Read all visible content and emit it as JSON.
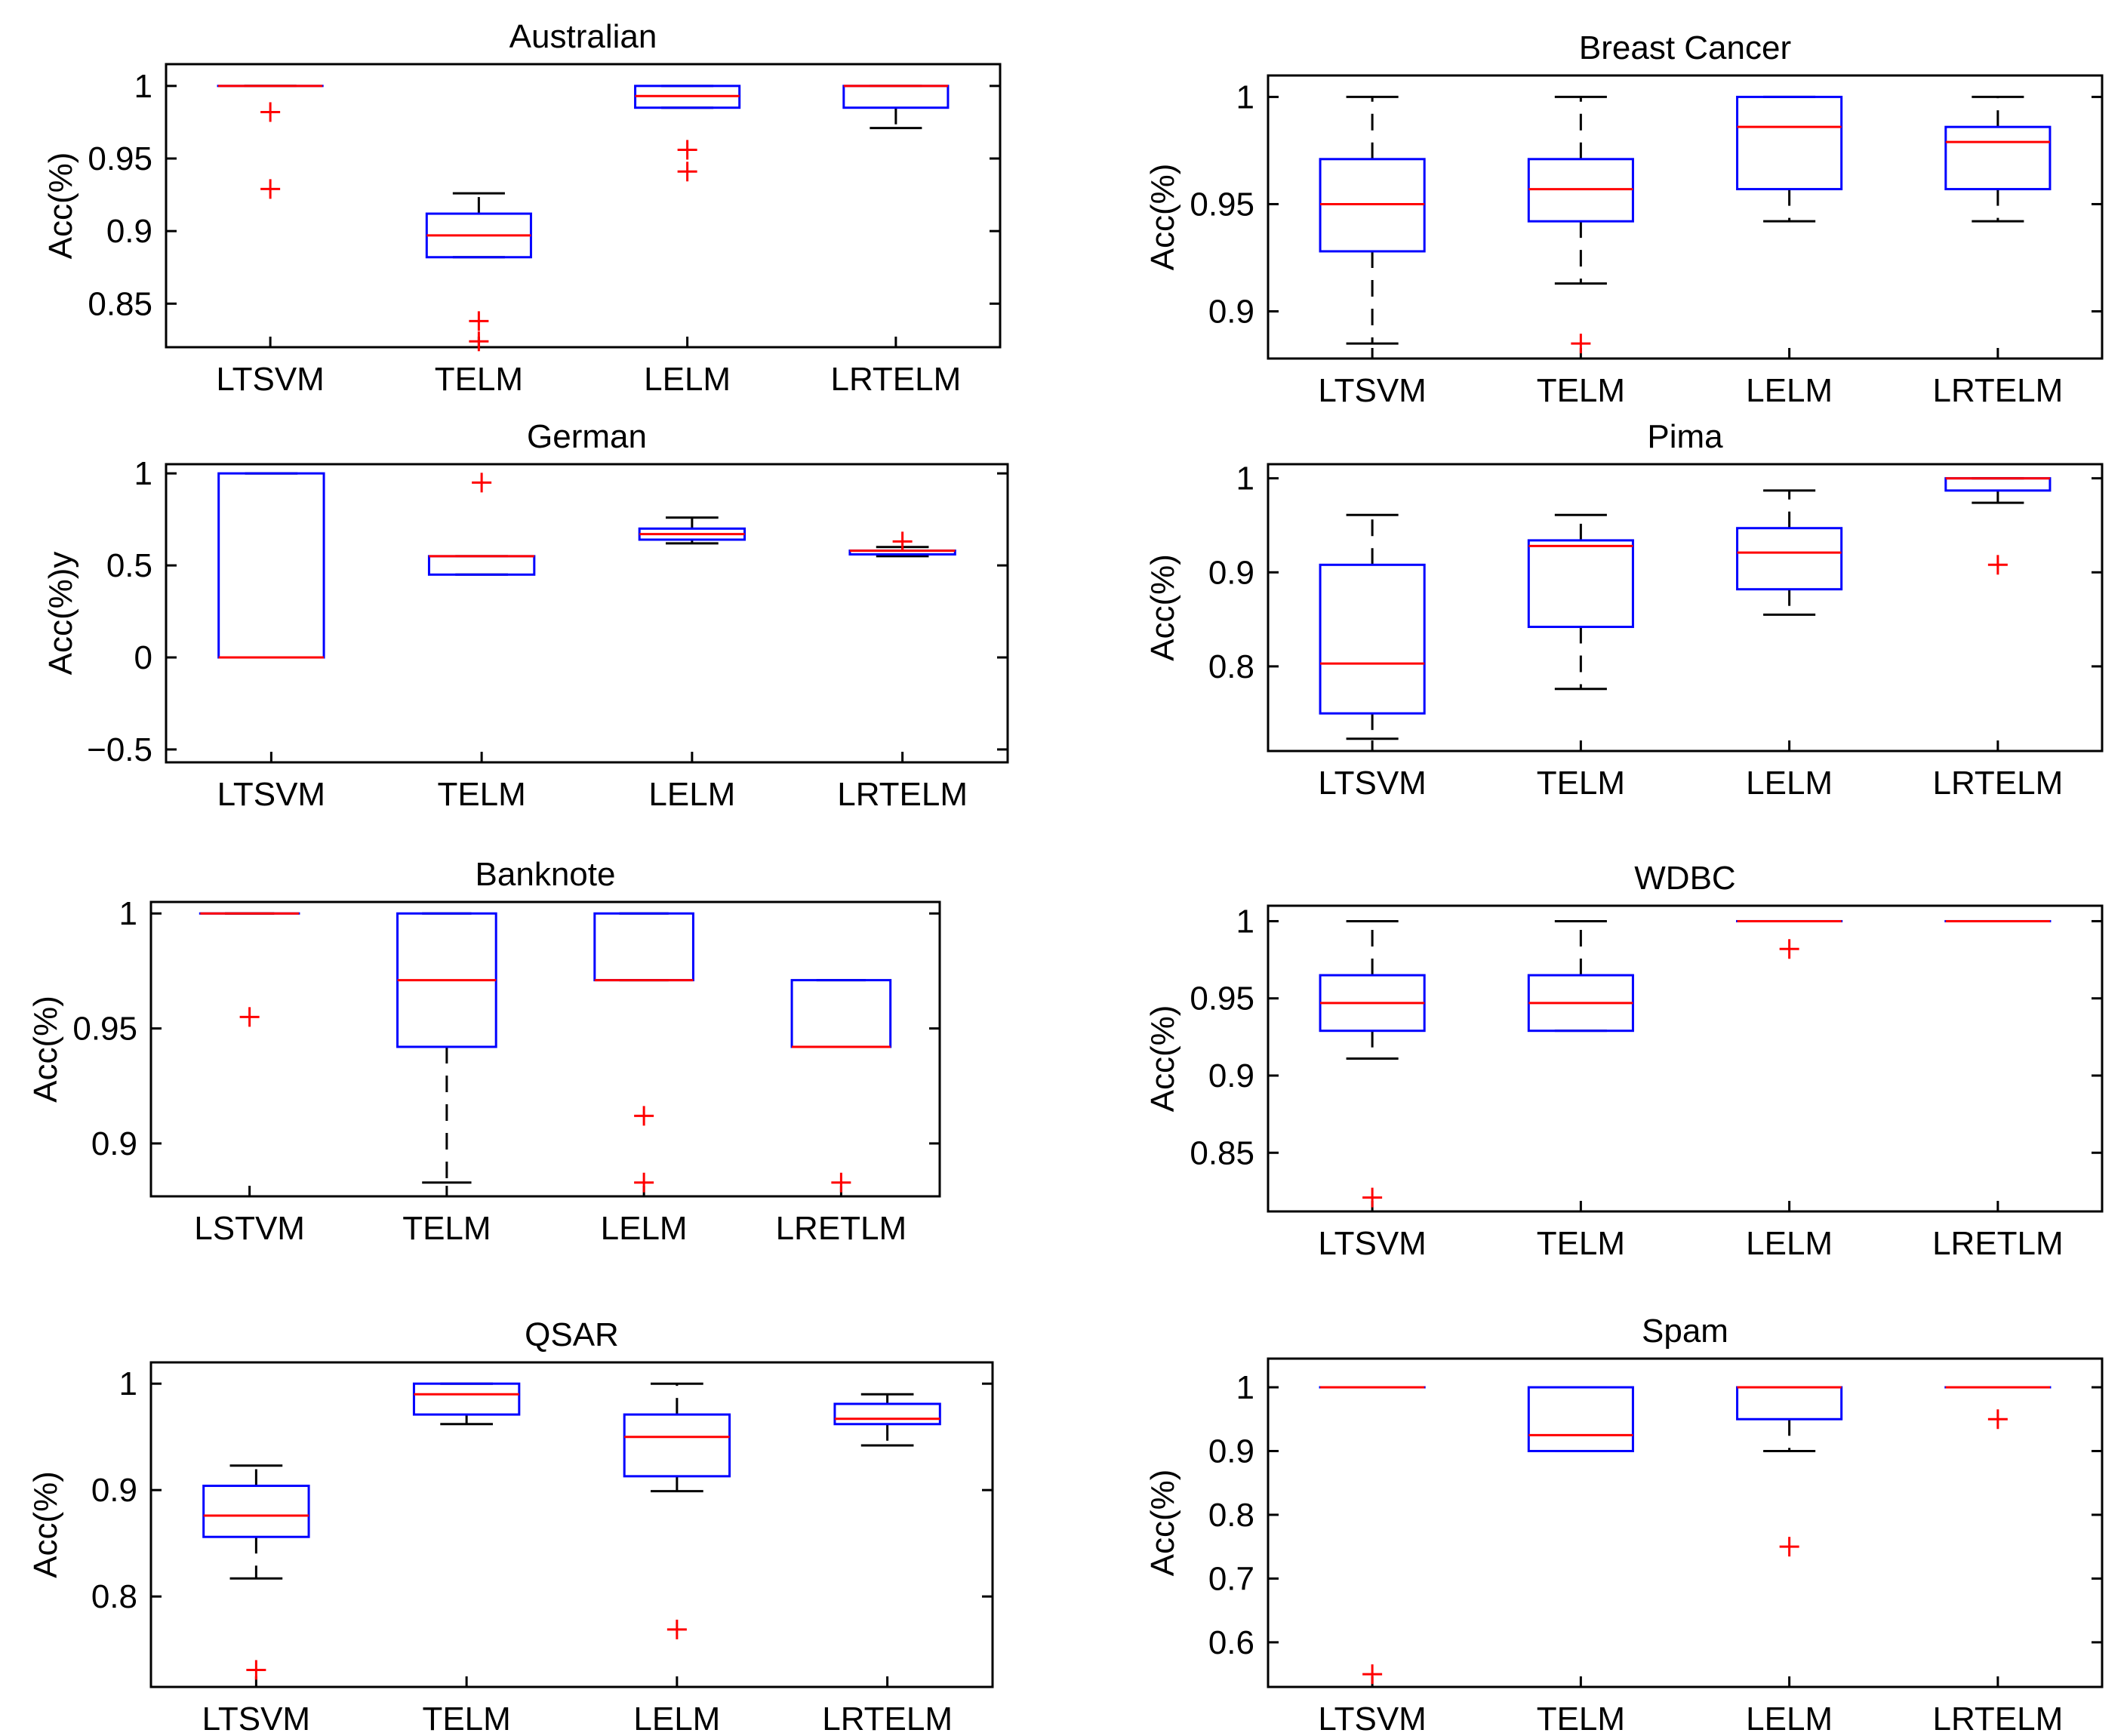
{
  "colors": {
    "box": "#0000ff",
    "median": "#ff0000",
    "outlier": "#ff0000",
    "whisker": "#000000",
    "axis": "#000000"
  },
  "chart_data": [
    {
      "type": "box",
      "title": "Australian",
      "ylabel": "Acc(%)",
      "categories": [
        "LTSVM",
        "TELM",
        "LELM",
        "LRTELM"
      ],
      "ylim": [
        0.82,
        1.015
      ],
      "yticks": [
        0.85,
        0.9,
        0.95,
        1
      ],
      "ytick_labels": [
        "0.85",
        "0.9",
        "0.95",
        "1"
      ],
      "boxes": [
        {
          "q1": 1.0,
          "median": 1.0,
          "q3": 1.0,
          "whisker_low": 1.0,
          "whisker_high": 1.0,
          "outliers": [
            0.982,
            0.929
          ]
        },
        {
          "q1": 0.882,
          "median": 0.897,
          "q3": 0.912,
          "whisker_low": 0.882,
          "whisker_high": 0.926,
          "outliers": [
            0.838,
            0.824
          ]
        },
        {
          "q1": 0.985,
          "median": 0.993,
          "q3": 1.0,
          "whisker_low": 0.985,
          "whisker_high": 1.0,
          "outliers": [
            0.956,
            0.941
          ]
        },
        {
          "q1": 0.985,
          "median": 1.0,
          "q3": 1.0,
          "whisker_low": 0.971,
          "whisker_high": 1.0,
          "outliers": []
        }
      ]
    },
    {
      "type": "box",
      "title": "Breast Cancer",
      "ylabel": "Acc(%)",
      "categories": [
        "LTSVM",
        "TELM",
        "LELM",
        "LRTELM"
      ],
      "ylim": [
        0.878,
        1.01
      ],
      "yticks": [
        0.9,
        0.95,
        1
      ],
      "ytick_labels": [
        "0.9",
        "0.95",
        "1"
      ],
      "boxes": [
        {
          "q1": 0.928,
          "median": 0.95,
          "q3": 0.971,
          "whisker_low": 0.885,
          "whisker_high": 1.0,
          "outliers": []
        },
        {
          "q1": 0.942,
          "median": 0.957,
          "q3": 0.971,
          "whisker_low": 0.913,
          "whisker_high": 1.0,
          "outliers": [
            0.885
          ]
        },
        {
          "q1": 0.957,
          "median": 0.986,
          "q3": 1.0,
          "whisker_low": 0.942,
          "whisker_high": 1.0,
          "outliers": []
        },
        {
          "q1": 0.957,
          "median": 0.979,
          "q3": 0.986,
          "whisker_low": 0.942,
          "whisker_high": 1.0,
          "outliers": []
        }
      ]
    },
    {
      "type": "box",
      "title": "German",
      "ylabel": "Acc(%)y",
      "categories": [
        "LTSVM",
        "TELM",
        "LELM",
        "LRTELM"
      ],
      "ylim": [
        -0.57,
        1.05
      ],
      "yticks": [
        -0.5,
        0,
        0.5,
        1
      ],
      "ytick_labels": [
        "−0.5",
        "0",
        "0.5",
        "1"
      ],
      "boxes": [
        {
          "q1": 0.0,
          "median": 0.0,
          "q3": 1.0,
          "whisker_low": 0.0,
          "whisker_high": 1.0,
          "outliers": []
        },
        {
          "q1": 0.45,
          "median": 0.55,
          "q3": 0.55,
          "whisker_low": 0.45,
          "whisker_high": 0.55,
          "outliers": [
            0.95
          ]
        },
        {
          "q1": 0.64,
          "median": 0.67,
          "q3": 0.7,
          "whisker_low": 0.62,
          "whisker_high": 0.76,
          "outliers": []
        },
        {
          "q1": 0.56,
          "median": 0.58,
          "q3": 0.58,
          "whisker_low": 0.55,
          "whisker_high": 0.6,
          "outliers": [
            0.63
          ]
        }
      ]
    },
    {
      "type": "box",
      "title": "Pima",
      "ylabel": "Acc(%)",
      "categories": [
        "LTSVM",
        "TELM",
        "LELM",
        "LRTELM"
      ],
      "ylim": [
        0.71,
        1.015
      ],
      "yticks": [
        0.8,
        0.9,
        1
      ],
      "ytick_labels": [
        "0.8",
        "0.9",
        "1"
      ],
      "boxes": [
        {
          "q1": 0.75,
          "median": 0.803,
          "q3": 0.908,
          "whisker_low": 0.723,
          "whisker_high": 0.961,
          "outliers": []
        },
        {
          "q1": 0.842,
          "median": 0.928,
          "q3": 0.934,
          "whisker_low": 0.776,
          "whisker_high": 0.961,
          "outliers": []
        },
        {
          "q1": 0.882,
          "median": 0.921,
          "q3": 0.947,
          "whisker_low": 0.855,
          "whisker_high": 0.987,
          "outliers": []
        },
        {
          "q1": 0.987,
          "median": 1.0,
          "q3": 1.0,
          "whisker_low": 0.974,
          "whisker_high": 1.0,
          "outliers": [
            0.908
          ]
        }
      ]
    },
    {
      "type": "box",
      "title": "Banknote",
      "ylabel": "Acc(%)",
      "categories": [
        "LSTVM",
        "TELM",
        "LELM",
        "LRETLM"
      ],
      "ylim": [
        0.877,
        1.005
      ],
      "yticks": [
        0.9,
        0.95,
        1
      ],
      "ytick_labels": [
        "0.9",
        "0.95",
        "1"
      ],
      "boxes": [
        {
          "q1": 1.0,
          "median": 1.0,
          "q3": 1.0,
          "whisker_low": 1.0,
          "whisker_high": 1.0,
          "outliers": [
            0.955
          ]
        },
        {
          "q1": 0.942,
          "median": 0.971,
          "q3": 1.0,
          "whisker_low": 0.883,
          "whisker_high": 1.0,
          "outliers": []
        },
        {
          "q1": 0.971,
          "median": 0.971,
          "q3": 1.0,
          "whisker_low": 0.971,
          "whisker_high": 1.0,
          "outliers": [
            0.912,
            0.883
          ]
        },
        {
          "q1": 0.942,
          "median": 0.942,
          "q3": 0.971,
          "whisker_low": 0.942,
          "whisker_high": 0.971,
          "outliers": [
            0.883
          ]
        }
      ]
    },
    {
      "type": "box",
      "title": "WDBC",
      "ylabel": "Acc(%)",
      "categories": [
        "LTSVM",
        "TELM",
        "LELM",
        "LRETLM"
      ],
      "ylim": [
        0.812,
        1.01
      ],
      "yticks": [
        0.85,
        0.9,
        0.95,
        1
      ],
      "ytick_labels": [
        "0.85",
        "0.9",
        "0.95",
        "1"
      ],
      "boxes": [
        {
          "q1": 0.929,
          "median": 0.947,
          "q3": 0.965,
          "whisker_low": 0.911,
          "whisker_high": 1.0,
          "outliers": [
            0.821
          ]
        },
        {
          "q1": 0.929,
          "median": 0.947,
          "q3": 0.965,
          "whisker_low": 0.929,
          "whisker_high": 1.0,
          "outliers": []
        },
        {
          "q1": 1.0,
          "median": 1.0,
          "q3": 1.0,
          "whisker_low": 1.0,
          "whisker_high": 1.0,
          "outliers": [
            0.982
          ]
        },
        {
          "q1": 1.0,
          "median": 1.0,
          "q3": 1.0,
          "whisker_low": 1.0,
          "whisker_high": 1.0,
          "outliers": []
        }
      ]
    },
    {
      "type": "box",
      "title": "QSAR",
      "ylabel": "Acc(%)",
      "categories": [
        "LTSVM",
        "TELM",
        "LELM",
        "LRTELM"
      ],
      "ylim": [
        0.715,
        1.02
      ],
      "yticks": [
        0.8,
        0.9,
        1
      ],
      "ytick_labels": [
        "0.8",
        "0.9",
        "1"
      ],
      "boxes": [
        {
          "q1": 0.856,
          "median": 0.876,
          "q3": 0.904,
          "whisker_low": 0.817,
          "whisker_high": 0.923,
          "outliers": [
            0.731
          ]
        },
        {
          "q1": 0.971,
          "median": 0.99,
          "q3": 1.0,
          "whisker_low": 0.962,
          "whisker_high": 1.0,
          "outliers": []
        },
        {
          "q1": 0.913,
          "median": 0.95,
          "q3": 0.971,
          "whisker_low": 0.899,
          "whisker_high": 1.0,
          "outliers": [
            0.769
          ]
        },
        {
          "q1": 0.962,
          "median": 0.967,
          "q3": 0.981,
          "whisker_low": 0.942,
          "whisker_high": 0.99,
          "outliers": []
        }
      ]
    },
    {
      "type": "box",
      "title": "Spam",
      "ylabel": "Acc(%)",
      "categories": [
        "LTSVM",
        "TELM",
        "LELM",
        "LRTELM"
      ],
      "ylim": [
        0.53,
        1.045
      ],
      "yticks": [
        0.6,
        0.7,
        0.8,
        0.9,
        1
      ],
      "ytick_labels": [
        "0.6",
        "0.7",
        "0.8",
        "0.9",
        "1"
      ],
      "boxes": [
        {
          "q1": 1.0,
          "median": 1.0,
          "q3": 1.0,
          "whisker_low": 1.0,
          "whisker_high": 1.0,
          "outliers": [
            0.55
          ]
        },
        {
          "q1": 0.9,
          "median": 0.925,
          "q3": 1.0,
          "whisker_low": 0.9,
          "whisker_high": 1.0,
          "outliers": []
        },
        {
          "q1": 0.95,
          "median": 1.0,
          "q3": 1.0,
          "whisker_low": 0.9,
          "whisker_high": 1.0,
          "outliers": [
            0.75
          ]
        },
        {
          "q1": 1.0,
          "median": 1.0,
          "q3": 1.0,
          "whisker_low": 1.0,
          "whisker_high": 1.0,
          "outliers": [
            0.95
          ]
        }
      ]
    }
  ]
}
